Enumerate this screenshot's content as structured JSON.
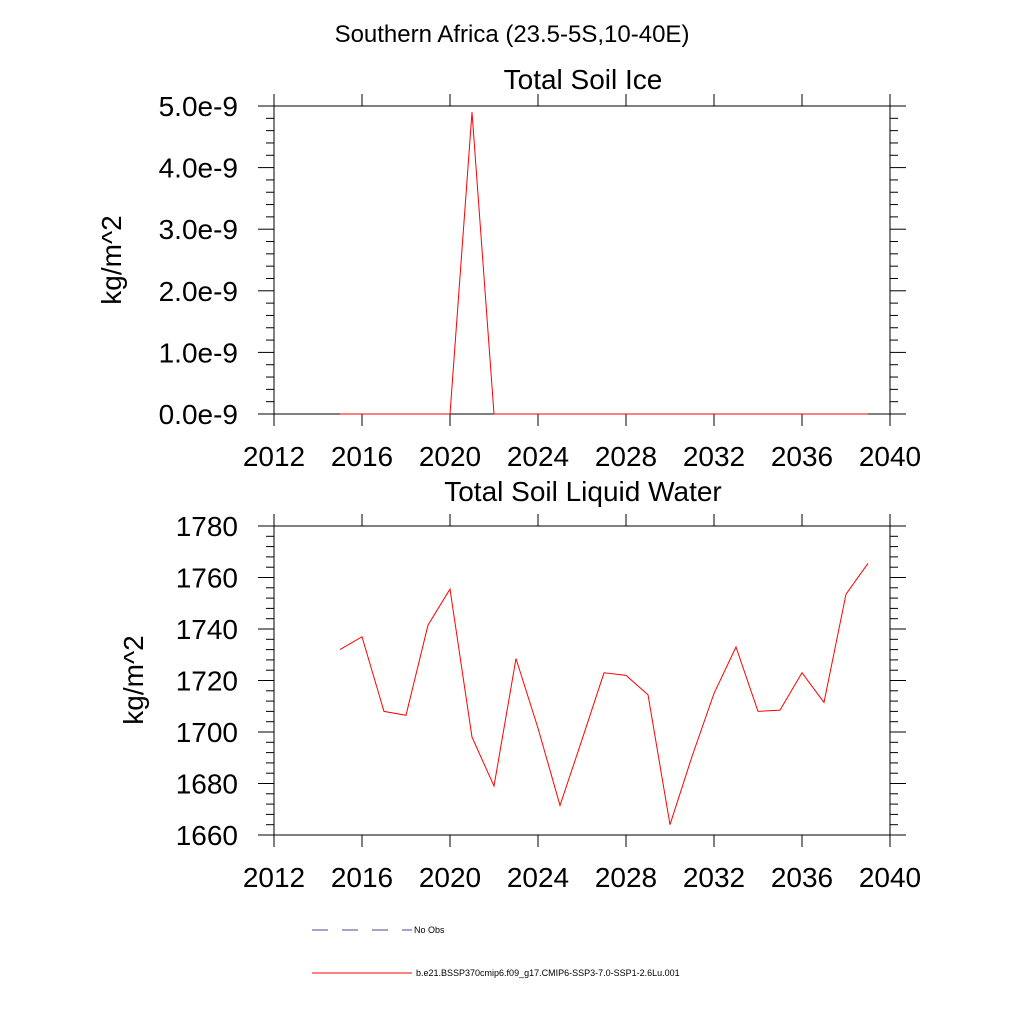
{
  "figure": {
    "title": "Southern Africa (23.5-5S,10-40E)",
    "line_color": "#ff0000",
    "obs_color": "#4a4a8a",
    "legend": {
      "placement": "bottom",
      "entries": [
        {
          "label": "No Obs",
          "style": "dashed",
          "color": "#4a4a8a"
        },
        {
          "label": "b.e21.BSSP370cmip6.f09_g17.CMIP6-SSP3-7.0-SSP1-2.6Lu.001",
          "style": "solid",
          "color": "#ff0000"
        }
      ]
    }
  },
  "chart_data": [
    {
      "type": "line",
      "title": "Total Soil Ice",
      "xlabel": "",
      "ylabel": "kg/m^2",
      "xlim": [
        2012,
        2040
      ],
      "ylim": [
        0,
        5e-09
      ],
      "x_ticks": [
        2012,
        2016,
        2020,
        2024,
        2028,
        2032,
        2036,
        2040
      ],
      "x_tick_labels": [
        "2012",
        "2016",
        "2020",
        "2024",
        "2028",
        "2032",
        "2036",
        "2040"
      ],
      "y_ticks": [
        0,
        1e-09,
        2e-09,
        3e-09,
        4e-09,
        5e-09
      ],
      "y_tick_labels": [
        "0.0e-9",
        "1.0e-9",
        "2.0e-9",
        "3.0e-9",
        "4.0e-9",
        "5.0e-9"
      ],
      "grid": false,
      "legend": "bottom",
      "series": [
        {
          "color": "#ff0000",
          "x": [
            2015,
            2016,
            2017,
            2018,
            2019,
            2020,
            2021,
            2022,
            2023,
            2024,
            2025,
            2026,
            2027,
            2028,
            2029,
            2030,
            2031,
            2032,
            2033,
            2034,
            2035,
            2036,
            2037,
            2038,
            2039
          ],
          "values": [
            0,
            0,
            0,
            0,
            0,
            0,
            4.9e-09,
            0,
            0,
            0,
            0,
            0,
            0,
            0,
            0,
            0,
            0,
            0,
            0,
            0,
            0,
            0,
            0,
            0,
            0
          ]
        }
      ]
    },
    {
      "type": "line",
      "title": "Total Soil Liquid Water",
      "xlabel": "",
      "ylabel": "kg/m^2",
      "xlim": [
        2012,
        2040
      ],
      "ylim": [
        1660,
        1780
      ],
      "x_ticks": [
        2012,
        2016,
        2020,
        2024,
        2028,
        2032,
        2036,
        2040
      ],
      "x_tick_labels": [
        "2012",
        "2016",
        "2020",
        "2024",
        "2028",
        "2032",
        "2036",
        "2040"
      ],
      "y_ticks": [
        1660,
        1680,
        1700,
        1720,
        1740,
        1760,
        1780
      ],
      "y_tick_labels": [
        "1660",
        "1680",
        "1700",
        "1720",
        "1740",
        "1760",
        "1780"
      ],
      "grid": false,
      "legend": "bottom",
      "series": [
        {
          "color": "#ff0000",
          "x": [
            2015,
            2016,
            2017,
            2018,
            2019,
            2020,
            2021,
            2022,
            2023,
            2024,
            2025,
            2026,
            2027,
            2028,
            2029,
            2030,
            2031,
            2032,
            2033,
            2034,
            2035,
            2036,
            2037,
            2038,
            2039
          ],
          "values": [
            1732,
            1737,
            1708,
            1706.5,
            1741.5,
            1755.5,
            1698,
            1679,
            1728.5,
            1701.5,
            1671.5,
            1697,
            1723,
            1722,
            1714.5,
            1664,
            1690.5,
            1715,
            1733,
            1708,
            1708.5,
            1723,
            1711.5,
            1753.5,
            1765.5
          ]
        }
      ]
    }
  ]
}
